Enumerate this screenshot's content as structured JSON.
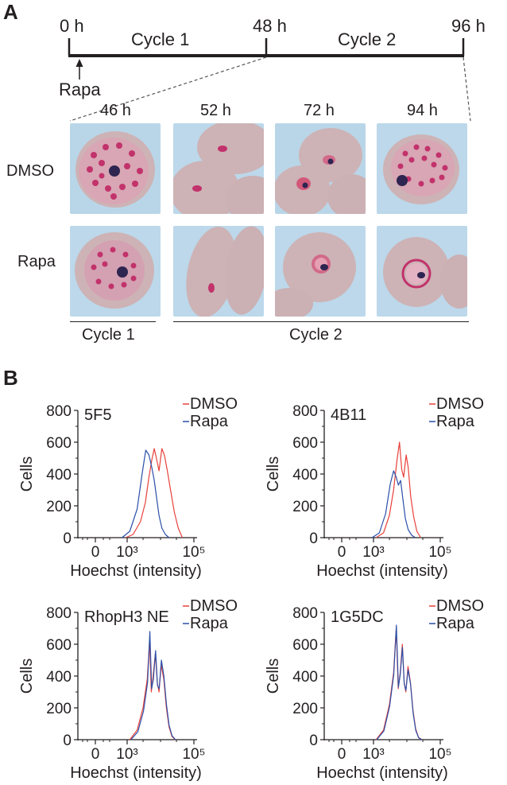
{
  "panel_a": {
    "letter": "A",
    "timeline": {
      "t0": "0 h",
      "t48": "48 h",
      "t96": "96 h",
      "cycle1": "Cycle 1",
      "cycle2": "Cycle 2",
      "treatment": "Rapa"
    },
    "columns": [
      "46 h",
      "52 h",
      "72 h",
      "94 h"
    ],
    "rows": [
      "DMSO",
      "Rapa"
    ],
    "cycle_group_1": "Cycle 1",
    "cycle_group_2": "Cycle 2"
  },
  "panel_b": {
    "letter": "B"
  },
  "colors": {
    "dmso": "#e8413a",
    "rapa": "#2b4fa8",
    "cell": "#cdb3b6",
    "parasite_dot": "#c2326b",
    "background_slide": "#b9d6e8"
  },
  "chart_data": [
    {
      "type": "line",
      "title": "5F5",
      "xlabel": "Hoechst (intensity)",
      "ylabel": "Cells",
      "ylim": [
        0,
        800
      ],
      "yticks": [
        "0",
        "200",
        "400",
        "600",
        "800"
      ],
      "xticks": [
        "0",
        "10³",
        "10⁵"
      ],
      "xscale": "log",
      "legend": "top-right",
      "series": [
        {
          "name": "DMSO",
          "color": "#e8413a",
          "x": [
            900,
            1500,
            2500,
            3500,
            4500,
            5500,
            6500,
            7500,
            9000,
            11000,
            13000,
            16000,
            20000,
            26000,
            34000,
            45000
          ],
          "y": [
            0,
            20,
            100,
            220,
            380,
            490,
            560,
            500,
            420,
            560,
            520,
            420,
            300,
            160,
            60,
            0
          ]
        },
        {
          "name": "Rapa",
          "color": "#2b4fa8",
          "x": [
            700,
            1200,
            2000,
            2800,
            3600,
            4500,
            5500,
            6500,
            7500,
            9000,
            11000,
            14000,
            18000
          ],
          "y": [
            0,
            40,
            180,
            400,
            550,
            520,
            440,
            360,
            260,
            140,
            60,
            20,
            0
          ]
        }
      ]
    },
    {
      "type": "line",
      "title": "4B11",
      "xlabel": "Hoechst (intensity)",
      "ylabel": "Cells",
      "ylim": [
        0,
        800
      ],
      "yticks": [
        "0",
        "200",
        "400",
        "600",
        "800"
      ],
      "xticks": [
        "0",
        "10³",
        "10⁵"
      ],
      "xscale": "log",
      "legend": "top-right",
      "series": [
        {
          "name": "DMSO",
          "color": "#e8413a",
          "x": [
            1200,
            2000,
            3000,
            4000,
            5000,
            6000,
            7000,
            8000,
            9500,
            11000,
            13000,
            16000,
            20000,
            26000
          ],
          "y": [
            0,
            30,
            140,
            300,
            480,
            600,
            430,
            380,
            520,
            440,
            260,
            130,
            40,
            0
          ]
        },
        {
          "name": "Rapa",
          "color": "#2b4fa8",
          "x": [
            900,
            1500,
            2300,
            3200,
            4000,
            4800,
            5600,
            6500,
            7500,
            9000,
            11000,
            14000,
            18000
          ],
          "y": [
            0,
            30,
            150,
            340,
            420,
            380,
            330,
            360,
            250,
            120,
            50,
            15,
            0
          ]
        }
      ]
    },
    {
      "type": "line",
      "title": "RhopH3 NE",
      "xlabel": "Hoechst (intensity)",
      "ylabel": "Cells",
      "ylim": [
        0,
        800
      ],
      "yticks": [
        "0",
        "200",
        "400",
        "600",
        "800"
      ],
      "xticks": [
        "0",
        "10³",
        "10⁵"
      ],
      "xscale": "log",
      "legend": "top-right",
      "series": [
        {
          "name": "DMSO",
          "color": "#e8413a",
          "x": [
            1200,
            2000,
            3000,
            4000,
            4700,
            5300,
            6000,
            7000,
            8000,
            9000,
            10500,
            12500,
            15000,
            18000,
            22000,
            28000
          ],
          "y": [
            0,
            60,
            200,
            380,
            620,
            300,
            400,
            540,
            360,
            300,
            470,
            380,
            200,
            80,
            20,
            0
          ]
        },
        {
          "name": "Rapa",
          "color": "#2b4fa8",
          "x": [
            1300,
            2100,
            3100,
            4100,
            4800,
            5400,
            6100,
            7100,
            8100,
            9100,
            10600,
            12600,
            15100,
            18100,
            22100,
            28100
          ],
          "y": [
            0,
            50,
            180,
            360,
            680,
            320,
            380,
            560,
            340,
            320,
            500,
            400,
            220,
            90,
            25,
            0
          ]
        }
      ]
    },
    {
      "type": "line",
      "title": "1G5DC",
      "xlabel": "Hoechst (intensity)",
      "ylabel": "Cells",
      "ylim": [
        0,
        800
      ],
      "yticks": [
        "0",
        "200",
        "400",
        "600",
        "800"
      ],
      "xticks": [
        "0",
        "10³",
        "10⁵"
      ],
      "xscale": "log",
      "legend": "top-right",
      "series": [
        {
          "name": "DMSO",
          "color": "#e8413a",
          "x": [
            1200,
            2000,
            3000,
            4000,
            4800,
            5500,
            6300,
            7300,
            8300,
            9300,
            10800,
            12800,
            15300,
            18300,
            22300,
            28300
          ],
          "y": [
            0,
            60,
            220,
            420,
            700,
            320,
            420,
            600,
            360,
            300,
            460,
            360,
            180,
            70,
            15,
            0
          ]
        },
        {
          "name": "Rapa",
          "color": "#2b4fa8",
          "x": [
            1250,
            2050,
            3050,
            4050,
            4850,
            5550,
            6350,
            7350,
            8350,
            9350,
            10850,
            12850,
            15350,
            18350,
            22350,
            28350
          ],
          "y": [
            0,
            55,
            210,
            410,
            720,
            330,
            410,
            580,
            350,
            310,
            440,
            350,
            170,
            60,
            12,
            0
          ]
        }
      ]
    }
  ]
}
